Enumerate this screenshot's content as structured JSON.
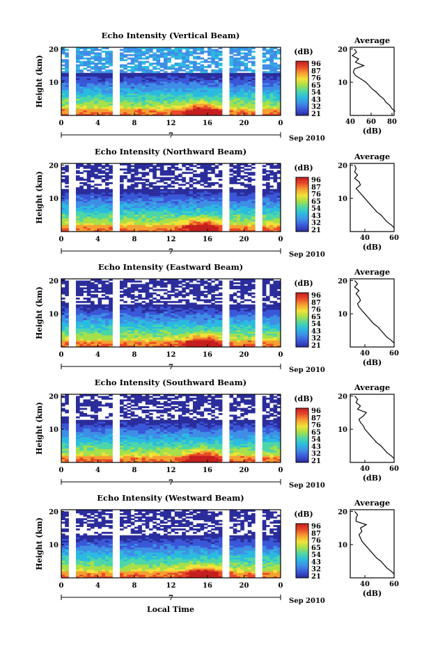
{
  "chart_data": [
    {
      "type": "heatmap",
      "title": "Echo Intensity (Vertical Beam)",
      "ylabel": "Height (km)",
      "yticks": [
        "20",
        "10"
      ],
      "xticks": [
        "0",
        "4",
        "8",
        "12",
        "16",
        "20",
        "0"
      ],
      "date_mark": "7",
      "date_suffix": "Sep 2010",
      "colorbar_unit": "(dB)",
      "colorbar_ticks": [
        "96",
        "87",
        "76",
        "65",
        "54",
        "43",
        "32",
        "21"
      ],
      "avg": {
        "title": "Average",
        "xlabel": "(dB)",
        "xticks": [
          "40",
          "60",
          "80"
        ],
        "yticks": [
          "20",
          "10"
        ],
        "xlim": [
          40,
          82
        ],
        "profile": [
          [
            83,
            1.2
          ],
          [
            80,
            2
          ],
          [
            78,
            3
          ],
          [
            74,
            4
          ],
          [
            72,
            5
          ],
          [
            68,
            6
          ],
          [
            65,
            7
          ],
          [
            61,
            8
          ],
          [
            58,
            9
          ],
          [
            55,
            10
          ],
          [
            50,
            11
          ],
          [
            45,
            12
          ],
          [
            43,
            13
          ],
          [
            44,
            14
          ],
          [
            53,
            15
          ],
          [
            45,
            16
          ],
          [
            48,
            17
          ],
          [
            42,
            18
          ],
          [
            46,
            19
          ],
          [
            44,
            20
          ]
        ]
      }
    },
    {
      "type": "heatmap",
      "title": "Echo Intensity (Northward Beam)",
      "ylabel": "Height (km)",
      "yticks": [
        "20",
        "10"
      ],
      "xticks": [
        "0",
        "4",
        "8",
        "12",
        "16",
        "20",
        "0"
      ],
      "date_mark": "7",
      "date_suffix": "Sep 2010",
      "colorbar_unit": "(dB)",
      "colorbar_ticks": [
        "96",
        "87",
        "76",
        "65",
        "54",
        "43",
        "32",
        "21"
      ],
      "avg": {
        "title": "Average",
        "xlabel": "(dB)",
        "xticks": [
          "40",
          "60"
        ],
        "yticks": [
          "20",
          "10"
        ],
        "xlim": [
          30,
          60
        ],
        "profile": [
          [
            60,
            1.2
          ],
          [
            58,
            2
          ],
          [
            55,
            3
          ],
          [
            53,
            4
          ],
          [
            51,
            5
          ],
          [
            48,
            6
          ],
          [
            46,
            7
          ],
          [
            44,
            8
          ],
          [
            42,
            9
          ],
          [
            40,
            10
          ],
          [
            38,
            11
          ],
          [
            36,
            12
          ],
          [
            34,
            13
          ],
          [
            37,
            14
          ],
          [
            36,
            15
          ],
          [
            33,
            16
          ],
          [
            35,
            17
          ],
          [
            33,
            18
          ],
          [
            34,
            19
          ],
          [
            33,
            20
          ]
        ]
      }
    },
    {
      "type": "heatmap",
      "title": "Echo Intensity (Eastward Beam)",
      "ylabel": "Height (km)",
      "yticks": [
        "20",
        "10"
      ],
      "xticks": [
        "0",
        "4",
        "8",
        "12",
        "16",
        "20",
        "0"
      ],
      "date_mark": "7",
      "date_suffix": "Sep 2010",
      "colorbar_unit": "(dB)",
      "colorbar_ticks": [
        "96",
        "87",
        "76",
        "65",
        "54",
        "43",
        "32",
        "21"
      ],
      "avg": {
        "title": "Average",
        "xlabel": "(dB)",
        "xticks": [
          "40",
          "60"
        ],
        "yticks": [
          "20",
          "10"
        ],
        "xlim": [
          30,
          60
        ],
        "profile": [
          [
            60,
            1.2
          ],
          [
            58,
            2
          ],
          [
            55,
            3
          ],
          [
            53,
            4
          ],
          [
            51,
            5
          ],
          [
            49,
            6
          ],
          [
            46,
            7
          ],
          [
            44,
            8
          ],
          [
            42,
            9
          ],
          [
            40,
            10
          ],
          [
            38,
            11
          ],
          [
            36,
            12
          ],
          [
            35,
            13
          ],
          [
            37,
            14
          ],
          [
            36,
            15
          ],
          [
            34,
            16
          ],
          [
            36,
            17
          ],
          [
            33,
            18
          ],
          [
            35,
            19
          ],
          [
            33,
            20
          ]
        ]
      }
    },
    {
      "type": "heatmap",
      "title": "Echo Intensity (Southward Beam)",
      "ylabel": "Height (km)",
      "yticks": [
        "20",
        "10"
      ],
      "xticks": [
        "0",
        "4",
        "8",
        "12",
        "16",
        "20",
        "0"
      ],
      "date_mark": "7",
      "date_suffix": "Sep 2010",
      "colorbar_unit": "(dB)",
      "colorbar_ticks": [
        "96",
        "87",
        "76",
        "65",
        "54",
        "43",
        "32",
        "21"
      ],
      "avg": {
        "title": "Average",
        "xlabel": "(dB)",
        "xticks": [
          "40",
          "60"
        ],
        "yticks": [
          "20",
          "10"
        ],
        "xlim": [
          30,
          60
        ],
        "profile": [
          [
            60,
            1.2
          ],
          [
            58,
            2
          ],
          [
            55,
            3
          ],
          [
            53,
            4
          ],
          [
            51,
            5
          ],
          [
            48,
            6
          ],
          [
            46,
            7
          ],
          [
            44,
            8
          ],
          [
            42,
            9
          ],
          [
            40,
            10
          ],
          [
            39,
            11
          ],
          [
            37,
            12
          ],
          [
            36,
            13
          ],
          [
            39,
            14
          ],
          [
            41,
            15
          ],
          [
            35,
            16
          ],
          [
            37,
            17
          ],
          [
            34,
            18
          ],
          [
            35,
            19
          ],
          [
            33,
            20
          ]
        ]
      }
    },
    {
      "type": "heatmap",
      "title": "Echo Intensity (Westward Beam)",
      "ylabel": "Height (km)",
      "yticks": [
        "20",
        "10"
      ],
      "xticks": [
        "0",
        "4",
        "8",
        "12",
        "16",
        "20",
        "0"
      ],
      "date_mark": "7",
      "date_suffix": "Sep 2010",
      "colorbar_unit": "(dB)",
      "colorbar_ticks": [
        "96",
        "87",
        "76",
        "65",
        "54",
        "43",
        "32",
        "21"
      ],
      "avg": {
        "title": "Average",
        "xlabel": "(dB)",
        "xticks": [
          "40",
          "60"
        ],
        "yticks": [
          "20",
          "10"
        ],
        "xlim": [
          30,
          60
        ],
        "profile": [
          [
            60,
            1.2
          ],
          [
            58,
            2
          ],
          [
            55,
            3
          ],
          [
            53,
            4
          ],
          [
            51,
            5
          ],
          [
            48,
            6
          ],
          [
            46,
            7
          ],
          [
            44,
            8
          ],
          [
            42,
            9
          ],
          [
            40,
            10
          ],
          [
            38,
            11
          ],
          [
            37,
            12
          ],
          [
            36,
            13
          ],
          [
            38,
            14
          ],
          [
            37,
            15
          ],
          [
            41,
            16
          ],
          [
            34,
            17
          ],
          [
            34,
            18
          ],
          [
            35,
            19
          ],
          [
            33,
            20
          ]
        ]
      }
    }
  ],
  "x_axis_label": "Local Time",
  "colormap": [
    "#2b2d9c",
    "#3a57d8",
    "#3f8ee6",
    "#2bbbe0",
    "#4dd6a8",
    "#a6e04a",
    "#f2e23a",
    "#f5a030",
    "#e8492a",
    "#c41e1e"
  ]
}
